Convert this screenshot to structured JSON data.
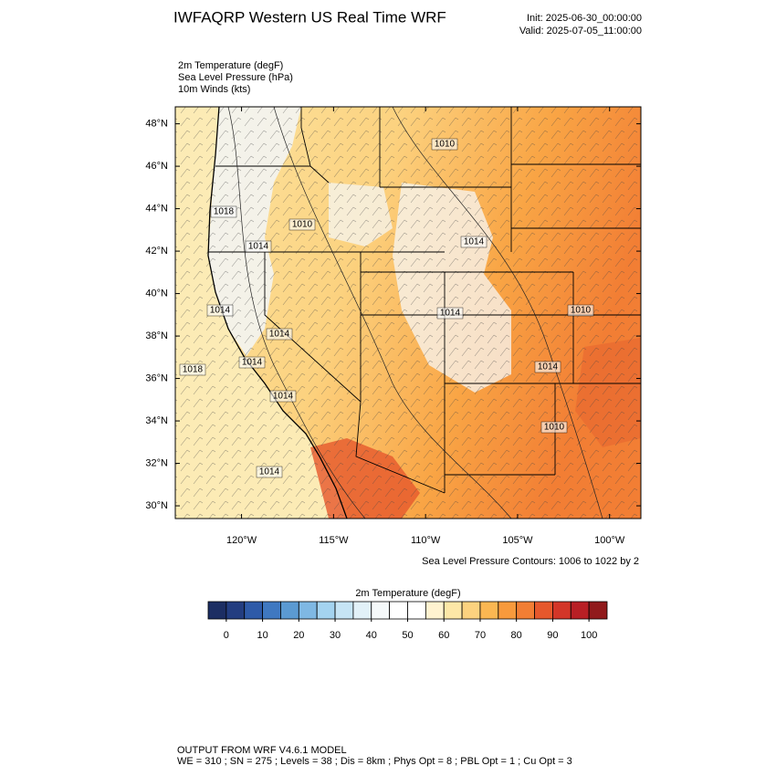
{
  "header": {
    "title": "IWFAQRP Western US Real Time WRF",
    "init": "Init: 2025-06-30_00:00:00",
    "valid": "Valid: 2025-07-05_11:00:00"
  },
  "fields": [
    "2m Temperature   (degF)",
    "Sea Level Pressure   (hPa)",
    "10m Winds   (kts)"
  ],
  "map": {
    "lonlim": [
      -123.6,
      -98.3
    ],
    "latlim": [
      29.4,
      48.8
    ],
    "lat_ticks": [
      {
        "value": 30,
        "label": "30°N"
      },
      {
        "value": 32,
        "label": "32°N"
      },
      {
        "value": 34,
        "label": "34°N"
      },
      {
        "value": 36,
        "label": "36°N"
      },
      {
        "value": 38,
        "label": "38°N"
      },
      {
        "value": 40,
        "label": "40°N"
      },
      {
        "value": 42,
        "label": "42°N"
      },
      {
        "value": 44,
        "label": "44°N"
      },
      {
        "value": 46,
        "label": "46°N"
      },
      {
        "value": 48,
        "label": "48°N"
      }
    ],
    "lon_ticks": [
      {
        "value": -120,
        "label": "120°W"
      },
      {
        "value": -115,
        "label": "115°W"
      },
      {
        "value": -110,
        "label": "110°W"
      },
      {
        "value": -105,
        "label": "105°W"
      },
      {
        "value": -100,
        "label": "100°W"
      }
    ],
    "contour_labels": [
      1010,
      1018,
      1010,
      1014,
      1014,
      1014,
      1014,
      1018,
      1014,
      1014,
      1010,
      1014,
      1010,
      1014,
      1014
    ],
    "contour_note": "Sea Level Pressure Contours: 1006 to 1022 by 2"
  },
  "colorbar": {
    "title": "2m Temperature  (degF)",
    "levels": [
      -5,
      0,
      5,
      10,
      15,
      20,
      25,
      30,
      35,
      40,
      45,
      50,
      55,
      60,
      65,
      70,
      75,
      80,
      85,
      90,
      95,
      100,
      105
    ],
    "colors": [
      "#1c2e63",
      "#233d80",
      "#2e5aa8",
      "#3f78c1",
      "#5b9ad2",
      "#7fb8e3",
      "#a4d3f0",
      "#c6e4f5",
      "#e2f1f8",
      "#f5f9fa",
      "#ffffff",
      "#ffffff",
      "#fff3d0",
      "#fde7a7",
      "#fcd27f",
      "#fbb752",
      "#f89a3c",
      "#f27e34",
      "#e6582c",
      "#d33628",
      "#b81f25",
      "#911a1c"
    ],
    "ticks": [
      0,
      10,
      20,
      30,
      40,
      50,
      60,
      70,
      80,
      90,
      100
    ]
  },
  "footer": [
    "OUTPUT FROM WRF V4.6.1 MODEL",
    "WE = 310 ; SN = 275 ; Levels = 38 ; Dis = 8km ; Phys Opt = 8 ; PBL Opt = 1 ; Cu Opt = 3"
  ]
}
